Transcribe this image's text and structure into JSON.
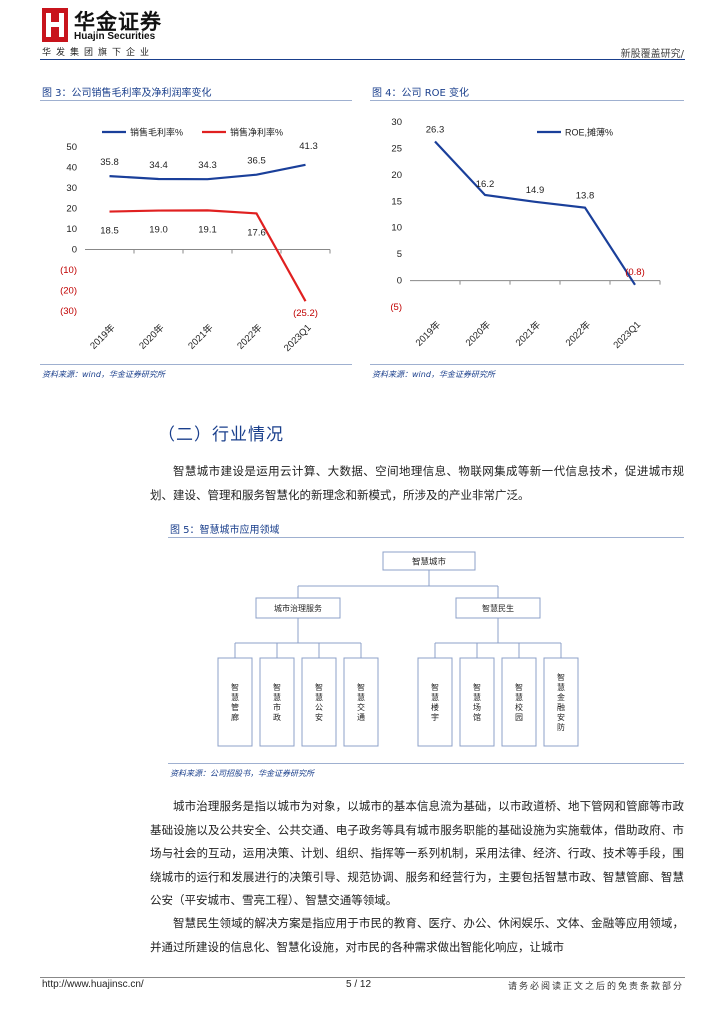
{
  "header": {
    "logo_cn": "华金证券",
    "logo_en": "Huajin Securities",
    "slogan": "华发集团旗下企业",
    "report_type": "新股覆盖研究/",
    "brand_color": "#c8141c",
    "accent_color": "#1a3f8c"
  },
  "figure3": {
    "caption": "图 3：公司销售毛利率及净利润率变化",
    "source": "资料来源：wind，华金证券研究所"
  },
  "figure4": {
    "caption": "图 4：公司 ROE 变化",
    "source": "资料来源：wind，华金证券研究所"
  },
  "chart_data": [
    {
      "type": "line",
      "x": [
        "2019年",
        "2020年",
        "2021年",
        "2022年",
        "2023Q1"
      ],
      "ylim": [
        -30,
        50
      ],
      "yticks": [
        "50",
        "40",
        "30",
        "20",
        "10",
        "0",
        "(10)",
        "(20)",
        "(30)"
      ],
      "grid": false,
      "legend_position": "top",
      "series": [
        {
          "name": "销售毛利率%",
          "color": "#1a3f9a",
          "values": [
            35.8,
            34.4,
            34.3,
            36.5,
            41.3
          ],
          "labels": [
            "35.8",
            "34.4",
            "34.3",
            "36.5",
            "41.3"
          ]
        },
        {
          "name": "销售净利率%",
          "color": "#e02020",
          "values": [
            18.5,
            19.0,
            19.1,
            17.6,
            -25.2
          ],
          "labels": [
            "18.5",
            "19.0",
            "19.1",
            "17.6",
            "(25.2)"
          ]
        }
      ]
    },
    {
      "type": "line",
      "x": [
        "2019年",
        "2020年",
        "2021年",
        "2022年",
        "2023Q1"
      ],
      "ylim": [
        -5,
        30
      ],
      "yticks": [
        "30",
        "25",
        "20",
        "15",
        "10",
        "5",
        "0",
        "(5)"
      ],
      "grid": false,
      "legend_position": "top-right",
      "series": [
        {
          "name": "ROE,摊薄%",
          "color": "#1a3f9a",
          "values": [
            26.3,
            16.2,
            14.9,
            13.8,
            -0.8
          ],
          "labels": [
            "26.3",
            "16.2",
            "14.9",
            "13.8",
            "(0.8)"
          ]
        }
      ]
    }
  ],
  "section": {
    "heading": "（二）行业情况",
    "para1": "智慧城市建设是运用云计算、大数据、空间地理信息、物联网集成等新一代信息技术，促进城市规划、建设、管理和服务智慧化的新理念和新模式，所涉及的产业非常广泛。"
  },
  "figure5": {
    "caption": "图 5：智慧城市应用领域",
    "source": "资料来源：公司招股书，华金证券研究所",
    "root": "智慧城市",
    "branches": [
      {
        "label": "城市治理服务",
        "leaves": [
          "智慧管廊",
          "智慧市政",
          "智慧公安",
          "智慧交通"
        ]
      },
      {
        "label": "智慧民生",
        "leaves": [
          "智慧楼宇",
          "智慧场馆",
          "智慧校园",
          "智慧金融安防"
        ]
      }
    ]
  },
  "body": {
    "para2": "城市治理服务是指以城市为对象，以城市的基本信息流为基础，以市政道桥、地下管网和管廊等市政基础设施以及公共安全、公共交通、电子政务等具有城市服务职能的基础设施为实施载体，借助政府、市场与社会的互动，运用决策、计划、组织、指挥等一系列机制，采用法律、经济、行政、技术等手段，围绕城市的运行和发展进行的决策引导、规范协调、服务和经营行为，主要包括智慧市政、智慧管廊、智慧公安（平安城市、雪亮工程）、智慧交通等领域。",
    "para3": "智慧民生领域的解决方案是指应用于市民的教育、医疗、办公、休闲娱乐、文体、金融等应用领域，并通过所建设的信息化、智慧化设施，对市民的各种需求做出智能化响应，让城市"
  },
  "footer": {
    "url": "http://www.huajinsc.cn/",
    "page": "5 / 12",
    "note": "请务必阅读正文之后的免责条款部分"
  }
}
